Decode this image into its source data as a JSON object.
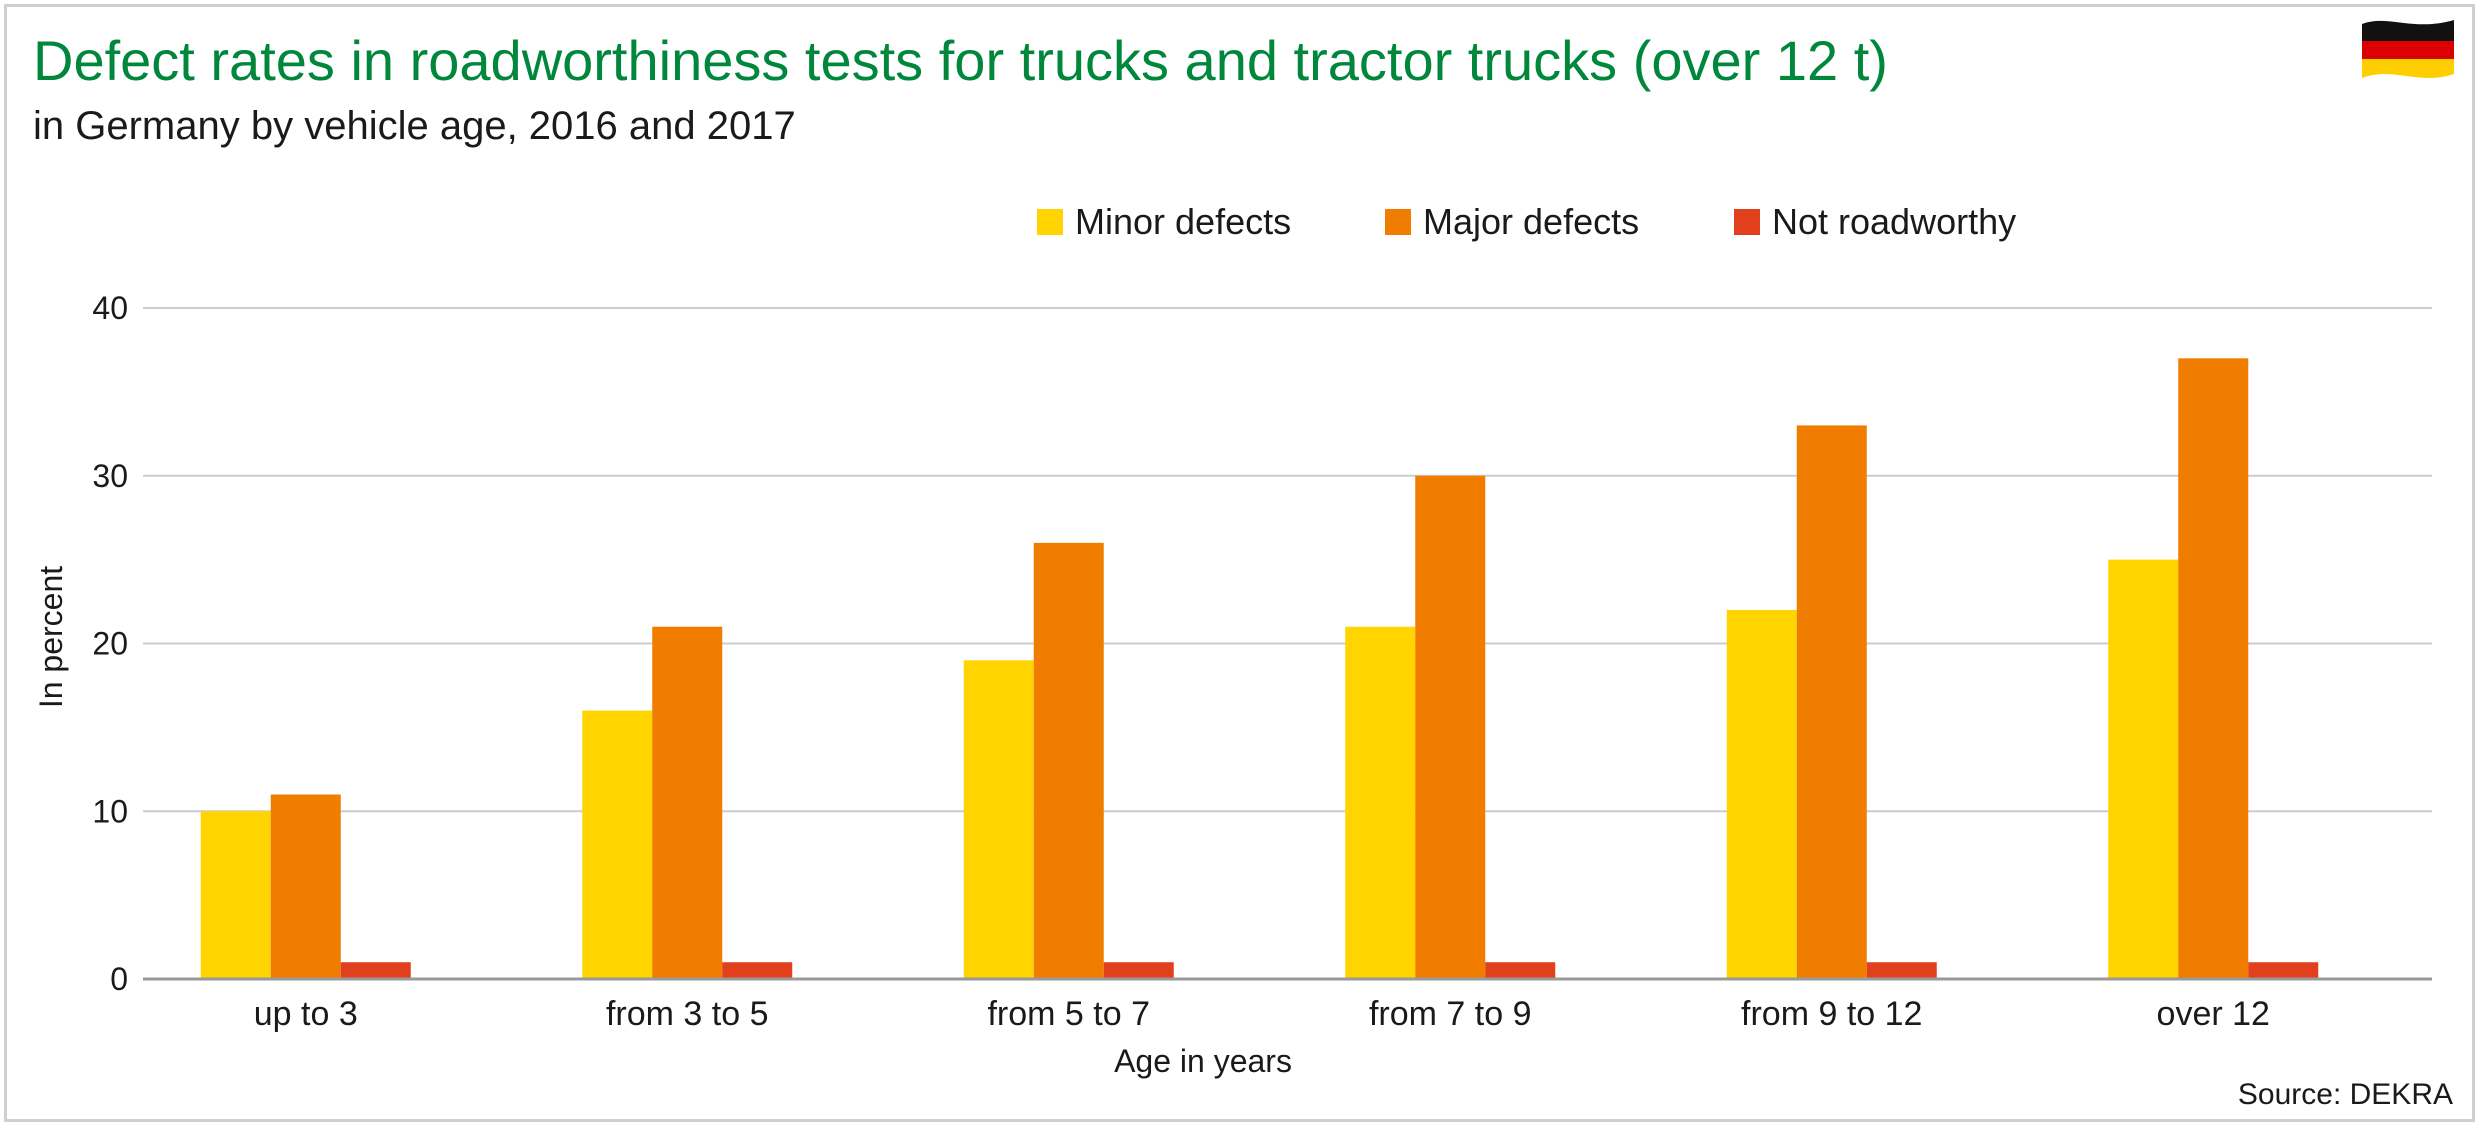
{
  "title": "Defect rates in roadworthiness tests for trucks and tractor trucks (over 12 t)",
  "subtitle": "in Germany by vehicle age, 2016 and 2017",
  "source": "Source: DEKRA",
  "chart_data": {
    "type": "bar",
    "categories": [
      "up to 3",
      "from 3 to 5",
      "from 5 to 7",
      "from 7 to 9",
      "from 9 to 12",
      "over 12"
    ],
    "series": [
      {
        "name": "Minor defects",
        "color": "#ffd400",
        "values": [
          10,
          16,
          19,
          21,
          22,
          25
        ]
      },
      {
        "name": "Major defects",
        "color": "#f07d00",
        "values": [
          11,
          21,
          26,
          30,
          33,
          37
        ]
      },
      {
        "name": "Not roadworthy",
        "color": "#e2401c",
        "values": [
          1,
          1,
          1,
          1,
          1,
          1
        ]
      }
    ],
    "xlabel": "Age in years",
    "ylabel": "In percent",
    "ylim": [
      0,
      40
    ],
    "yticks": [
      0,
      10,
      20,
      30,
      40
    ],
    "grid": true,
    "legend": "top"
  }
}
